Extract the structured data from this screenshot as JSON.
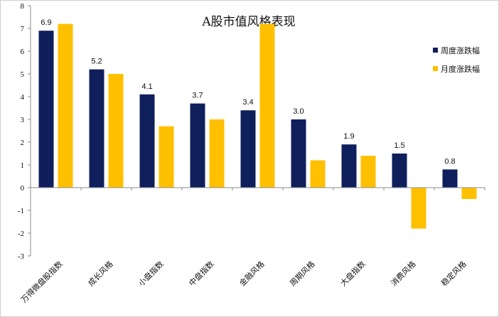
{
  "chart_data": {
    "type": "bar",
    "title": "A股市值风格表现",
    "categories": [
      "万得微盘股指数",
      "成长风格",
      "小盘指数",
      "中盘指数",
      "金融风格",
      "周期风格",
      "大盘指数",
      "消费风格",
      "稳定风格"
    ],
    "series": [
      {
        "name": "周度涨跌幅",
        "color": "#0f1f5c",
        "values": [
          6.9,
          5.2,
          4.1,
          3.7,
          3.4,
          3.0,
          1.9,
          1.5,
          0.8
        ],
        "labels": [
          "6.9",
          "5.2",
          "4.1",
          "3.7",
          "3.4",
          "3.0",
          "1.9",
          "1.5",
          "0.8"
        ]
      },
      {
        "name": "月度涨跌幅",
        "color": "#ffc000",
        "values": [
          7.2,
          5.0,
          2.7,
          3.0,
          7.2,
          1.2,
          1.4,
          -1.8,
          -0.5
        ]
      }
    ],
    "ylim": [
      -3,
      8
    ],
    "yticks": [
      "-3",
      "-2",
      "-1",
      "0",
      "1",
      "2",
      "3",
      "4",
      "5",
      "6",
      "7",
      "8"
    ],
    "xlabel": "",
    "ylabel": "",
    "grid": false,
    "legend_position": "right"
  }
}
